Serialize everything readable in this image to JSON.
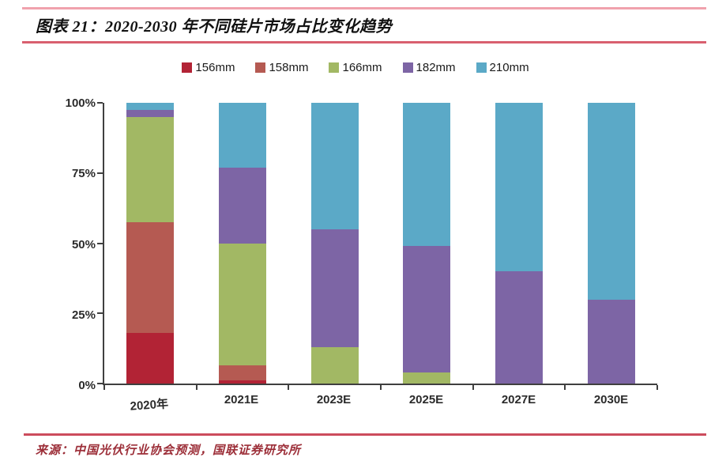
{
  "header": {
    "title": "图表 21：2020-2030 年不同硅片市场占比变化趋势"
  },
  "footer": {
    "source": "来源：中国光伏行业协会预测，国联证券研究所"
  },
  "colors": {
    "rule_top": "#f0a2ad",
    "rule_title_bottom": "#d9606f",
    "rule_footer": "#cc4c5c",
    "source_text": "#9c2e38",
    "axis": "#3f3f3f"
  },
  "chart_data": {
    "type": "bar",
    "stacked": true,
    "title": "2020-2030 年不同硅片市场占比变化趋势",
    "categories": [
      "2020年",
      "2021E",
      "2023E",
      "2025E",
      "2027E",
      "2030E"
    ],
    "series": [
      {
        "name": "156mm",
        "color": "#b22335",
        "values": [
          18,
          1,
          0,
          0,
          0,
          0
        ]
      },
      {
        "name": "158mm",
        "color": "#b55a52",
        "values": [
          39.5,
          5.5,
          0,
          0,
          0,
          0
        ]
      },
      {
        "name": "166mm",
        "color": "#a2b864",
        "values": [
          37.5,
          43.5,
          13,
          4,
          0,
          0
        ]
      },
      {
        "name": "182mm",
        "color": "#7d65a5",
        "values": [
          2.5,
          27,
          42,
          45,
          40,
          30
        ]
      },
      {
        "name": "210mm",
        "color": "#5ba9c7",
        "values": [
          2.5,
          23,
          45,
          51,
          60,
          70
        ]
      }
    ],
    "xlabel": "",
    "ylabel": "",
    "ylim": [
      0,
      100
    ],
    "yticks": [
      0,
      25,
      50,
      75,
      100
    ],
    "ytick_labels": [
      "0%",
      "25%",
      "50%",
      "75%",
      "100%"
    ],
    "grid": false,
    "legend_position": "top"
  }
}
